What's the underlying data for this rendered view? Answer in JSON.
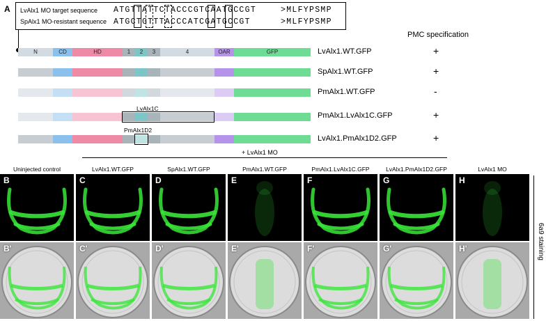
{
  "figure": {
    "panel_a_letter": "A",
    "sequences": {
      "target_label": "LvAlx1 MO target sequence",
      "target_seq": "ATGTTATTCTACCCGTCAATGCCGT",
      "target_protein": ">MLFYPSMP",
      "resistant_label": "SpAlx1 MO-resistant sequence",
      "resistant_seq": "ATGCTGTTTACCCATCGATGCCGT",
      "resistant_protein": ">MLFYPSMP"
    },
    "pmc_header": "PMC specification",
    "domains": {
      "n": "N",
      "cd": "CD",
      "hd": "HD",
      "r1": "1",
      "r2": "2",
      "r3": "3",
      "r4": "4",
      "oar": "OAR",
      "gfp": "GFP"
    },
    "constructs": [
      {
        "name": "LvAlx1.WT.GFP",
        "pmc": "+"
      },
      {
        "name": "SpAlx1.WT.GFP",
        "pmc": "+"
      },
      {
        "name": "PmAlx1.WT.GFP",
        "pmc": "-"
      },
      {
        "name": "PmAlx1.LvAlx1C.GFP",
        "pmc": "+",
        "inset_label": "LvAlx1C"
      },
      {
        "name": "LvAlx1.PmAlx1D2.GFP",
        "pmc": "+",
        "inset_label": "PmAlx1D2"
      }
    ],
    "injection_header": "+ LvAlx1 MO",
    "columns": [
      {
        "title": "Uninjected control",
        "top_letter": "B",
        "bottom_letter": "B'",
        "signal": "strong"
      },
      {
        "title": "LvAlx1.WT.GFP",
        "top_letter": "C",
        "bottom_letter": "C'",
        "signal": "strong"
      },
      {
        "title": "SpAlx1.WT.GFP",
        "top_letter": "D",
        "bottom_letter": "D'",
        "signal": "strong"
      },
      {
        "title": "PmAlx1.WT.GFP",
        "top_letter": "E",
        "bottom_letter": "E'",
        "signal": "weak"
      },
      {
        "title": "PmAlx1.LvAlx1C.GFP",
        "top_letter": "F",
        "bottom_letter": "F'",
        "signal": "strong"
      },
      {
        "title": "LvAlx1.PmAlx1D2.GFP",
        "top_letter": "G",
        "bottom_letter": "G'",
        "signal": "strong"
      },
      {
        "title": "LvAlx1 MO",
        "top_letter": "H",
        "bottom_letter": "H'",
        "signal": "weak"
      }
    ],
    "side_label": "6a9 staining",
    "colors": {
      "n_region": "#d3dbe2",
      "cd": "#8cc0ec",
      "hd": "#ee8aa6",
      "r1": "#a8b4ba",
      "r2": "#7ec6c6",
      "r3": "#a8b4ba",
      "r4": "#d3dbe2",
      "oar": "#b493e8",
      "gfp": "#6fdc95",
      "gfp_signal": "#39e639"
    }
  }
}
